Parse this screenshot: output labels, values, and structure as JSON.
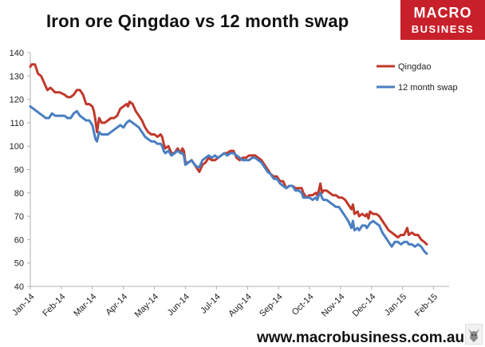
{
  "header": {
    "title": "Iron ore Qingdao vs 12 month swap"
  },
  "logo": {
    "line1": "MACRO",
    "line2": "BUSINESS",
    "brand_color": "#c8202a"
  },
  "footer": {
    "url": "www.macrobusiness.com.au"
  },
  "colors": {
    "qingdao": "#c0392b",
    "swap": "#4a7fc1",
    "axis": "#b0b0b0"
  },
  "chart_data": {
    "type": "line",
    "title": "Iron ore Qingdao vs 12 month swap",
    "xlabel": "",
    "ylabel": "",
    "ylim": [
      40,
      140
    ],
    "yticks": [
      40,
      50,
      60,
      70,
      80,
      90,
      100,
      110,
      120,
      130,
      140
    ],
    "xlim": [
      0,
      13.5
    ],
    "xticks": [
      {
        "x": 0,
        "label": "Jan-14"
      },
      {
        "x": 1,
        "label": "Feb-14"
      },
      {
        "x": 2,
        "label": "Mar-14"
      },
      {
        "x": 3,
        "label": "Apr-14"
      },
      {
        "x": 4,
        "label": "May-14"
      },
      {
        "x": 5,
        "label": "Jun-14"
      },
      {
        "x": 6,
        "label": "Jul-14"
      },
      {
        "x": 7,
        "label": "Aug-14"
      },
      {
        "x": 8,
        "label": "Sep-14"
      },
      {
        "x": 9,
        "label": "Oct-14"
      },
      {
        "x": 10,
        "label": "Nov-14"
      },
      {
        "x": 11,
        "label": "Dec-14"
      },
      {
        "x": 12,
        "label": "Jan-15"
      },
      {
        "x": 13,
        "label": "Feb-15"
      }
    ],
    "grid": false,
    "legend_position": "top-right",
    "series": [
      {
        "name": "Qingdao",
        "color": "#c0392b",
        "points": [
          [
            0.0,
            134
          ],
          [
            0.05,
            135
          ],
          [
            0.15,
            135
          ],
          [
            0.25,
            131
          ],
          [
            0.35,
            130
          ],
          [
            0.45,
            127
          ],
          [
            0.55,
            124
          ],
          [
            0.65,
            125
          ],
          [
            0.8,
            123
          ],
          [
            0.95,
            123
          ],
          [
            1.1,
            122
          ],
          [
            1.2,
            121
          ],
          [
            1.3,
            121
          ],
          [
            1.4,
            122
          ],
          [
            1.5,
            124
          ],
          [
            1.6,
            124
          ],
          [
            1.7,
            122
          ],
          [
            1.8,
            118
          ],
          [
            1.9,
            118
          ],
          [
            2.0,
            117
          ],
          [
            2.05,
            115
          ],
          [
            2.1,
            111
          ],
          [
            2.15,
            106
          ],
          [
            2.22,
            112
          ],
          [
            2.3,
            110
          ],
          [
            2.4,
            110
          ],
          [
            2.5,
            111
          ],
          [
            2.6,
            112
          ],
          [
            2.7,
            112
          ],
          [
            2.8,
            113
          ],
          [
            2.9,
            116
          ],
          [
            3.0,
            117
          ],
          [
            3.1,
            118
          ],
          [
            3.15,
            117
          ],
          [
            3.2,
            119
          ],
          [
            3.3,
            118
          ],
          [
            3.4,
            115
          ],
          [
            3.5,
            113
          ],
          [
            3.6,
            111
          ],
          [
            3.7,
            108
          ],
          [
            3.8,
            106
          ],
          [
            3.9,
            105
          ],
          [
            4.0,
            105
          ],
          [
            4.1,
            104
          ],
          [
            4.2,
            105
          ],
          [
            4.25,
            104
          ],
          [
            4.3,
            101
          ],
          [
            4.35,
            99
          ],
          [
            4.45,
            100
          ],
          [
            4.55,
            97
          ],
          [
            4.65,
            97
          ],
          [
            4.75,
            99
          ],
          [
            4.85,
            97
          ],
          [
            4.9,
            99
          ],
          [
            4.95,
            98
          ],
          [
            5.0,
            93
          ],
          [
            5.1,
            93
          ],
          [
            5.2,
            94
          ],
          [
            5.3,
            92
          ],
          [
            5.4,
            90
          ],
          [
            5.45,
            89
          ],
          [
            5.55,
            92
          ],
          [
            5.65,
            93
          ],
          [
            5.75,
            95
          ],
          [
            5.85,
            94
          ],
          [
            5.95,
            94
          ],
          [
            6.05,
            95
          ],
          [
            6.15,
            96
          ],
          [
            6.25,
            97
          ],
          [
            6.35,
            97
          ],
          [
            6.45,
            98
          ],
          [
            6.55,
            98
          ],
          [
            6.65,
            95
          ],
          [
            6.75,
            94
          ],
          [
            6.85,
            95
          ],
          [
            6.95,
            95
          ],
          [
            7.05,
            96
          ],
          [
            7.15,
            96
          ],
          [
            7.25,
            96
          ],
          [
            7.35,
            95
          ],
          [
            7.45,
            94
          ],
          [
            7.55,
            92
          ],
          [
            7.65,
            90
          ],
          [
            7.75,
            88
          ],
          [
            7.85,
            87
          ],
          [
            7.95,
            87
          ],
          [
            8.05,
            85
          ],
          [
            8.15,
            85
          ],
          [
            8.25,
            82
          ],
          [
            8.35,
            83
          ],
          [
            8.45,
            83
          ],
          [
            8.55,
            82
          ],
          [
            8.65,
            82
          ],
          [
            8.75,
            82
          ],
          [
            8.8,
            80
          ],
          [
            8.9,
            78
          ],
          [
            9.0,
            79
          ],
          [
            9.1,
            79
          ],
          [
            9.2,
            80
          ],
          [
            9.25,
            79
          ],
          [
            9.3,
            81
          ],
          [
            9.35,
            84
          ],
          [
            9.4,
            80
          ],
          [
            9.45,
            81
          ],
          [
            9.55,
            81
          ],
          [
            9.65,
            80
          ],
          [
            9.75,
            79
          ],
          [
            9.85,
            79
          ],
          [
            9.95,
            78
          ],
          [
            10.05,
            78
          ],
          [
            10.15,
            77
          ],
          [
            10.25,
            75
          ],
          [
            10.35,
            73
          ],
          [
            10.4,
            75
          ],
          [
            10.45,
            71
          ],
          [
            10.55,
            72
          ],
          [
            10.6,
            70
          ],
          [
            10.7,
            71
          ],
          [
            10.8,
            70
          ],
          [
            10.85,
            71
          ],
          [
            10.9,
            69
          ],
          [
            10.95,
            72
          ],
          [
            11.05,
            71
          ],
          [
            11.15,
            71
          ],
          [
            11.25,
            70
          ],
          [
            11.35,
            68
          ],
          [
            11.45,
            66
          ],
          [
            11.55,
            64
          ],
          [
            11.65,
            63
          ],
          [
            11.75,
            62
          ],
          [
            11.85,
            61
          ],
          [
            11.95,
            62
          ],
          [
            12.05,
            62
          ],
          [
            12.15,
            65
          ],
          [
            12.2,
            62
          ],
          [
            12.3,
            63
          ],
          [
            12.4,
            62
          ],
          [
            12.5,
            62
          ],
          [
            12.6,
            60
          ],
          [
            12.7,
            59
          ],
          [
            12.78,
            58
          ]
        ]
      },
      {
        "name": "12 month swap",
        "color": "#4a7fc1",
        "points": [
          [
            0.0,
            117
          ],
          [
            0.1,
            116
          ],
          [
            0.2,
            115
          ],
          [
            0.3,
            114
          ],
          [
            0.4,
            113
          ],
          [
            0.5,
            112
          ],
          [
            0.6,
            112
          ],
          [
            0.7,
            114
          ],
          [
            0.8,
            113
          ],
          [
            0.9,
            113
          ],
          [
            1.0,
            113
          ],
          [
            1.1,
            113
          ],
          [
            1.2,
            112
          ],
          [
            1.3,
            112
          ],
          [
            1.4,
            114
          ],
          [
            1.5,
            115
          ],
          [
            1.6,
            113
          ],
          [
            1.7,
            112
          ],
          [
            1.8,
            111
          ],
          [
            1.9,
            111
          ],
          [
            2.0,
            109
          ],
          [
            2.05,
            106
          ],
          [
            2.1,
            103
          ],
          [
            2.15,
            102
          ],
          [
            2.22,
            106
          ],
          [
            2.3,
            105
          ],
          [
            2.4,
            105
          ],
          [
            2.5,
            105
          ],
          [
            2.6,
            106
          ],
          [
            2.7,
            107
          ],
          [
            2.8,
            108
          ],
          [
            2.9,
            109
          ],
          [
            3.0,
            108
          ],
          [
            3.1,
            110
          ],
          [
            3.2,
            111
          ],
          [
            3.3,
            110
          ],
          [
            3.4,
            109
          ],
          [
            3.5,
            108
          ],
          [
            3.6,
            106
          ],
          [
            3.7,
            104
          ],
          [
            3.8,
            103
          ],
          [
            3.9,
            102
          ],
          [
            4.0,
            102
          ],
          [
            4.1,
            101
          ],
          [
            4.2,
            101
          ],
          [
            4.25,
            100
          ],
          [
            4.3,
            98
          ],
          [
            4.35,
            97
          ],
          [
            4.45,
            98
          ],
          [
            4.55,
            96
          ],
          [
            4.65,
            97
          ],
          [
            4.75,
            98
          ],
          [
            4.85,
            97
          ],
          [
            4.9,
            97
          ],
          [
            4.95,
            96
          ],
          [
            5.0,
            92
          ],
          [
            5.1,
            93
          ],
          [
            5.2,
            94
          ],
          [
            5.3,
            92
          ],
          [
            5.4,
            91
          ],
          [
            5.45,
            91
          ],
          [
            5.55,
            94
          ],
          [
            5.65,
            95
          ],
          [
            5.75,
            96
          ],
          [
            5.85,
            95
          ],
          [
            5.95,
            96
          ],
          [
            6.05,
            95
          ],
          [
            6.15,
            96
          ],
          [
            6.25,
            97
          ],
          [
            6.35,
            96
          ],
          [
            6.45,
            97
          ],
          [
            6.55,
            97
          ],
          [
            6.65,
            96
          ],
          [
            6.75,
            95
          ],
          [
            6.85,
            94
          ],
          [
            6.95,
            94
          ],
          [
            7.05,
            94
          ],
          [
            7.15,
            95
          ],
          [
            7.25,
            95
          ],
          [
            7.35,
            94
          ],
          [
            7.45,
            93
          ],
          [
            7.55,
            91
          ],
          [
            7.65,
            89
          ],
          [
            7.75,
            88
          ],
          [
            7.85,
            86
          ],
          [
            7.95,
            86
          ],
          [
            8.05,
            84
          ],
          [
            8.15,
            83
          ],
          [
            8.25,
            82
          ],
          [
            8.35,
            83
          ],
          [
            8.45,
            83
          ],
          [
            8.55,
            81
          ],
          [
            8.65,
            81
          ],
          [
            8.75,
            80
          ],
          [
            8.8,
            78
          ],
          [
            8.9,
            78
          ],
          [
            9.0,
            78
          ],
          [
            9.1,
            77
          ],
          [
            9.2,
            78
          ],
          [
            9.25,
            77
          ],
          [
            9.3,
            79
          ],
          [
            9.35,
            80
          ],
          [
            9.4,
            78
          ],
          [
            9.45,
            77
          ],
          [
            9.55,
            77
          ],
          [
            9.65,
            76
          ],
          [
            9.75,
            75
          ],
          [
            9.85,
            74
          ],
          [
            9.95,
            74
          ],
          [
            10.05,
            72
          ],
          [
            10.15,
            70
          ],
          [
            10.25,
            68
          ],
          [
            10.35,
            65
          ],
          [
            10.4,
            68
          ],
          [
            10.45,
            64
          ],
          [
            10.55,
            65
          ],
          [
            10.6,
            64
          ],
          [
            10.7,
            66
          ],
          [
            10.8,
            66
          ],
          [
            10.85,
            65
          ],
          [
            10.9,
            66
          ],
          [
            10.95,
            67
          ],
          [
            11.05,
            68
          ],
          [
            11.15,
            67
          ],
          [
            11.25,
            66
          ],
          [
            11.35,
            63
          ],
          [
            11.45,
            61
          ],
          [
            11.55,
            59
          ],
          [
            11.65,
            57
          ],
          [
            11.75,
            59
          ],
          [
            11.85,
            59
          ],
          [
            11.95,
            58
          ],
          [
            12.05,
            59
          ],
          [
            12.15,
            59
          ],
          [
            12.2,
            58
          ],
          [
            12.3,
            58
          ],
          [
            12.4,
            57
          ],
          [
            12.5,
            58
          ],
          [
            12.6,
            57
          ],
          [
            12.7,
            55
          ],
          [
            12.78,
            54
          ]
        ]
      }
    ]
  }
}
